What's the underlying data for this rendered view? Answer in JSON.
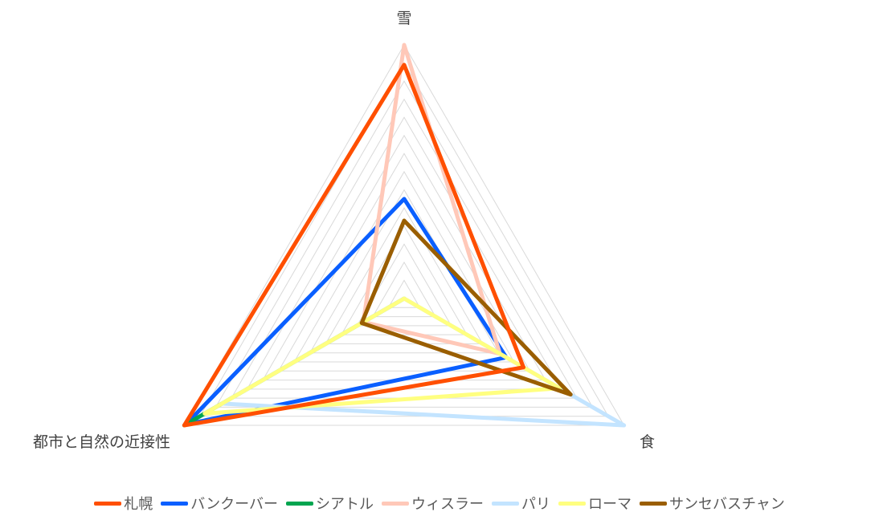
{
  "chart_data": {
    "type": "radar",
    "axes": [
      "雪",
      "食",
      "都市と自然の近接性"
    ],
    "range": [
      0,
      14
    ],
    "grid_levels": 14,
    "grid": true,
    "legend_position": "bottom",
    "series": [
      {
        "name": "札幌",
        "color": "#ff4f00",
        "values": [
          12.9,
          7.6,
          14
        ]
      },
      {
        "name": "バンクーバー",
        "color": "#0a5fff",
        "values": [
          5.5,
          6.5,
          13.9
        ]
      },
      {
        "name": "シアトル",
        "color": "#00a54f",
        "values": [
          0.0,
          0.0,
          14
        ]
      },
      {
        "name": "ウィスラー",
        "color": "#ffc8b8",
        "values": [
          14,
          6.1,
          2.6
        ]
      },
      {
        "name": "パリ",
        "color": "#c3e4ff",
        "values": [
          0.0,
          14,
          11.6
        ]
      },
      {
        "name": "ローマ",
        "color": "#ffff80",
        "values": [
          0.0,
          9.9,
          12.7
        ]
      },
      {
        "name": "サンセバスチャン",
        "color": "#9a5e00",
        "values": [
          4.3,
          10.6,
          2.7
        ]
      }
    ]
  }
}
